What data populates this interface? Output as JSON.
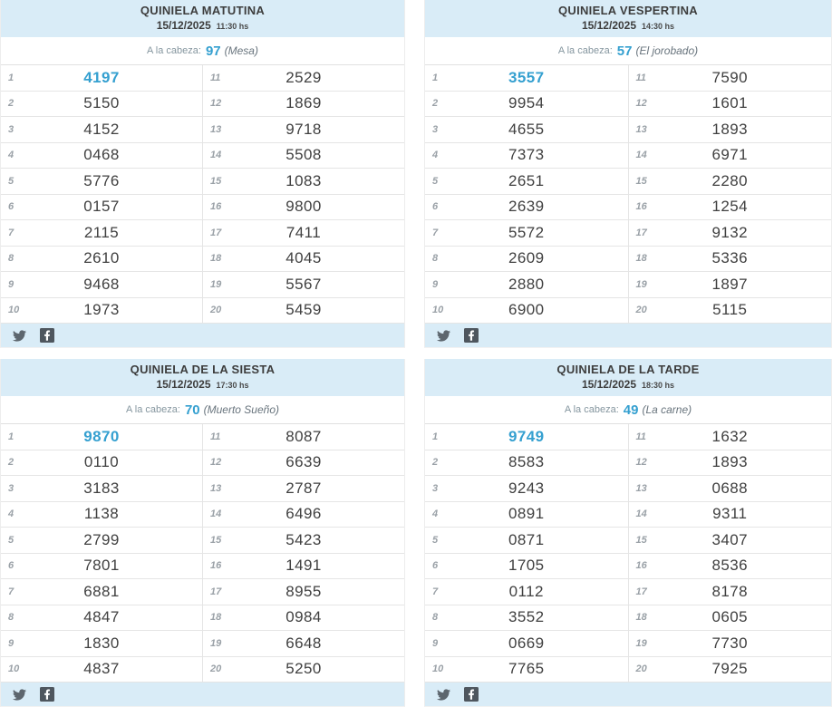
{
  "colors": {
    "header_bg": "#d9ecf7",
    "accent": "#35a0d0",
    "row_border": "#e5e5e5",
    "value_color": "#404040"
  },
  "social": {
    "twitter_icon": "twitter-icon",
    "facebook_icon": "facebook-icon"
  },
  "panels": [
    {
      "title": "QUINIELA MATUTINA",
      "date": "15/12/2025",
      "time": "11:30 hs",
      "cabeza_label": "A la cabeza:",
      "cabeza_number": "97",
      "cabeza_name": "(Mesa)",
      "rows": [
        [
          "1",
          "4197",
          "11",
          "2529"
        ],
        [
          "2",
          "5150",
          "12",
          "1869"
        ],
        [
          "3",
          "4152",
          "13",
          "9718"
        ],
        [
          "4",
          "0468",
          "14",
          "5508"
        ],
        [
          "5",
          "5776",
          "15",
          "1083"
        ],
        [
          "6",
          "0157",
          "16",
          "9800"
        ],
        [
          "7",
          "2115",
          "17",
          "7411"
        ],
        [
          "8",
          "2610",
          "18",
          "4045"
        ],
        [
          "9",
          "9468",
          "19",
          "5567"
        ],
        [
          "10",
          "1973",
          "20",
          "5459"
        ]
      ]
    },
    {
      "title": "QUINIELA VESPERTINA",
      "date": "15/12/2025",
      "time": "14:30 hs",
      "cabeza_label": "A la cabeza:",
      "cabeza_number": "57",
      "cabeza_name": "(El jorobado)",
      "rows": [
        [
          "1",
          "3557",
          "11",
          "7590"
        ],
        [
          "2",
          "9954",
          "12",
          "1601"
        ],
        [
          "3",
          "4655",
          "13",
          "1893"
        ],
        [
          "4",
          "7373",
          "14",
          "6971"
        ],
        [
          "5",
          "2651",
          "15",
          "2280"
        ],
        [
          "6",
          "2639",
          "16",
          "1254"
        ],
        [
          "7",
          "5572",
          "17",
          "9132"
        ],
        [
          "8",
          "2609",
          "18",
          "5336"
        ],
        [
          "9",
          "2880",
          "19",
          "1897"
        ],
        [
          "10",
          "6900",
          "20",
          "5115"
        ]
      ]
    },
    {
      "title": "QUINIELA DE LA SIESTA",
      "date": "15/12/2025",
      "time": "17:30 hs",
      "cabeza_label": "A la cabeza:",
      "cabeza_number": "70",
      "cabeza_name": "(Muerto Sueño)",
      "rows": [
        [
          "1",
          "9870",
          "11",
          "8087"
        ],
        [
          "2",
          "0110",
          "12",
          "6639"
        ],
        [
          "3",
          "3183",
          "13",
          "2787"
        ],
        [
          "4",
          "1138",
          "14",
          "6496"
        ],
        [
          "5",
          "2799",
          "15",
          "5423"
        ],
        [
          "6",
          "7801",
          "16",
          "1491"
        ],
        [
          "7",
          "6881",
          "17",
          "8955"
        ],
        [
          "8",
          "4847",
          "18",
          "0984"
        ],
        [
          "9",
          "1830",
          "19",
          "6648"
        ],
        [
          "10",
          "4837",
          "20",
          "5250"
        ]
      ]
    },
    {
      "title": "QUINIELA DE LA TARDE",
      "date": "15/12/2025",
      "time": "18:30 hs",
      "cabeza_label": "A la cabeza:",
      "cabeza_number": "49",
      "cabeza_name": "(La carne)",
      "rows": [
        [
          "1",
          "9749",
          "11",
          "1632"
        ],
        [
          "2",
          "8583",
          "12",
          "1893"
        ],
        [
          "3",
          "9243",
          "13",
          "0688"
        ],
        [
          "4",
          "0891",
          "14",
          "9311"
        ],
        [
          "5",
          "0871",
          "15",
          "3407"
        ],
        [
          "6",
          "1705",
          "16",
          "8536"
        ],
        [
          "7",
          "0112",
          "17",
          "8178"
        ],
        [
          "8",
          "3552",
          "18",
          "0605"
        ],
        [
          "9",
          "0669",
          "19",
          "7730"
        ],
        [
          "10",
          "7765",
          "20",
          "7925"
        ]
      ]
    }
  ]
}
